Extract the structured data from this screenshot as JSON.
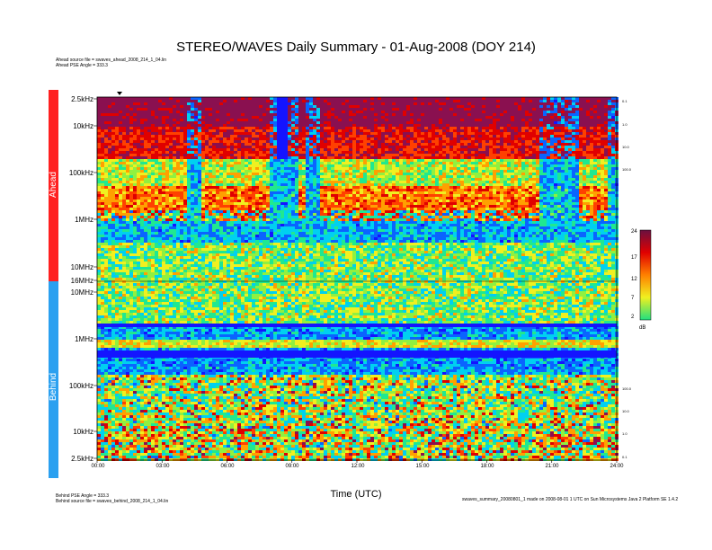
{
  "title": "STEREO/WAVES Daily Summary - 01-Aug-2008 (DOY 214)",
  "header_meta": [
    "Ahead source file = swaves_ahead_2008_214_1_04.lin",
    "Ahead PSE Angle = 333.3"
  ],
  "footer_meta_left": [
    "Behind PSE Angle = 333.3",
    "Behind source file = swaves_behind_2008_214_1_04.lin"
  ],
  "footer_meta_right": "swaves_summary_20080801_1 made on 2008-08-01 1 UTC on Sun Microsystems Java 2 Platform SE 1.4.2",
  "colors": {
    "ahead": "#ff2020",
    "behind": "#2aa0f0"
  },
  "chart_data": {
    "type": "heatmap",
    "xlabel": "Time (UTC)",
    "x_ticks": [
      "00:00",
      "03:00",
      "06:00",
      "09:00",
      "12:00",
      "15:00",
      "18:00",
      "21:00",
      "24:00"
    ],
    "xlim": [
      0,
      24
    ],
    "panels": [
      {
        "name": "Ahead",
        "y_ticks": [
          "2.5kHz",
          "10kHz",
          "100kHz",
          "1MHz",
          "10MHz",
          "16MHz"
        ]
      },
      {
        "name": "Behind",
        "y_ticks": [
          "10MHz",
          "1MHz",
          "100kHz",
          "10kHz",
          "2.5kHz"
        ]
      }
    ],
    "right_axis_ticks": [
      "0.1",
      "1.0",
      "10.0",
      "100.0"
    ],
    "colorbar": {
      "ticks": [
        "24",
        "17",
        "12",
        "7",
        "2"
      ],
      "unit": "dB",
      "range": [
        2,
        24
      ]
    }
  }
}
